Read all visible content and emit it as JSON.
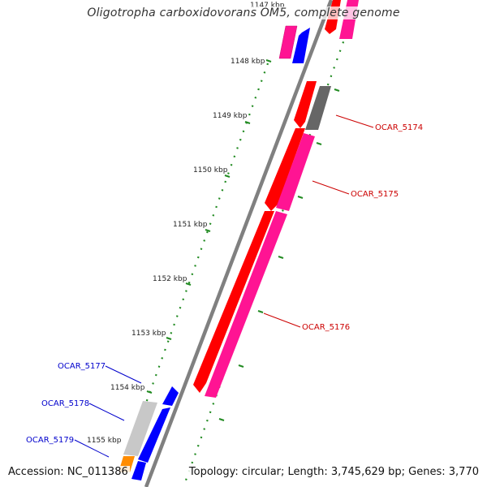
{
  "title": "Oligotropha carboxidovorans OM5, complete genome",
  "accession": "Accession: NC_011386",
  "topology": "Topology: circular; Length: 3,745,629 bp; Genes: 3,770",
  "colors": {
    "backbone": "#888888",
    "forward_tick": "#228B22",
    "red_gene": "#ff0000",
    "pink_gene": "#ff1493",
    "blue_gene": "#0000ff",
    "grey_gene": "#666666",
    "light_grey_gene": "#c8c8c8",
    "orange_gene": "#ff8c00",
    "red_label": "#cc0000",
    "blue_label": "#0000cc"
  },
  "kbp_labels": [
    "1147 kbp",
    "1148 kbp",
    "1149 kbp",
    "1150 kbp",
    "1151 kbp",
    "1152 kbp",
    "1153 kbp",
    "1154 kbp",
    "1155 kbp"
  ],
  "gene_labels": {
    "g5174": "OCAR_5174",
    "g5175": "OCAR_5175",
    "g5176": "OCAR_5176",
    "g5177": "OCAR_5177",
    "g5178": "OCAR_5178",
    "g5179": "OCAR_5179"
  }
}
